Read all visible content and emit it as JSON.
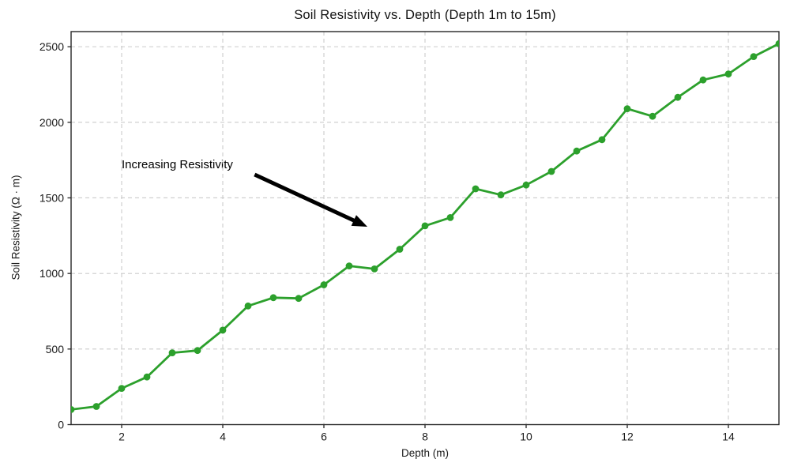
{
  "chart_data": {
    "type": "line",
    "title": "Soil Resistivity vs. Depth (Depth 1m to 15m)",
    "xlabel": "Depth (m)",
    "ylabel": "Soil Resistivity (Ω · m)",
    "x": [
      1,
      1.5,
      2,
      2.5,
      3,
      3.5,
      4,
      4.5,
      5,
      5.5,
      6,
      6.5,
      7,
      7.5,
      8,
      8.5,
      9,
      9.5,
      10,
      10.5,
      11,
      11.5,
      12,
      12.5,
      13,
      13.5,
      14,
      14.5,
      15
    ],
    "y": [
      100,
      120,
      240,
      315,
      475,
      490,
      625,
      785,
      840,
      835,
      925,
      1050,
      1030,
      1160,
      1315,
      1370,
      1560,
      1520,
      1585,
      1675,
      1810,
      1885,
      2090,
      2040,
      2165,
      2280,
      2320,
      2435,
      2520
    ],
    "xlim": [
      1,
      15
    ],
    "ylim": [
      0,
      2600
    ],
    "xticks": [
      2,
      4,
      6,
      8,
      10,
      12,
      14
    ],
    "yticks": [
      0,
      500,
      1000,
      1500,
      2000,
      2500
    ],
    "grid": true,
    "grid_style": "dashed",
    "legend_position": "none",
    "line_color": "#2ca02c",
    "marker": "circle",
    "annotation": {
      "text": "Increasing Resistivity",
      "text_xy": [
        2.0,
        1765
      ],
      "arrow_from": [
        4.63,
        1654
      ],
      "arrow_to": [
        6.86,
        1309
      ],
      "arrow_color": "#000000"
    },
    "colors": {
      "grid": "#cccccc",
      "axis": "#262626",
      "tick_text": "#1a1a1a",
      "background": "#ffffff"
    }
  }
}
